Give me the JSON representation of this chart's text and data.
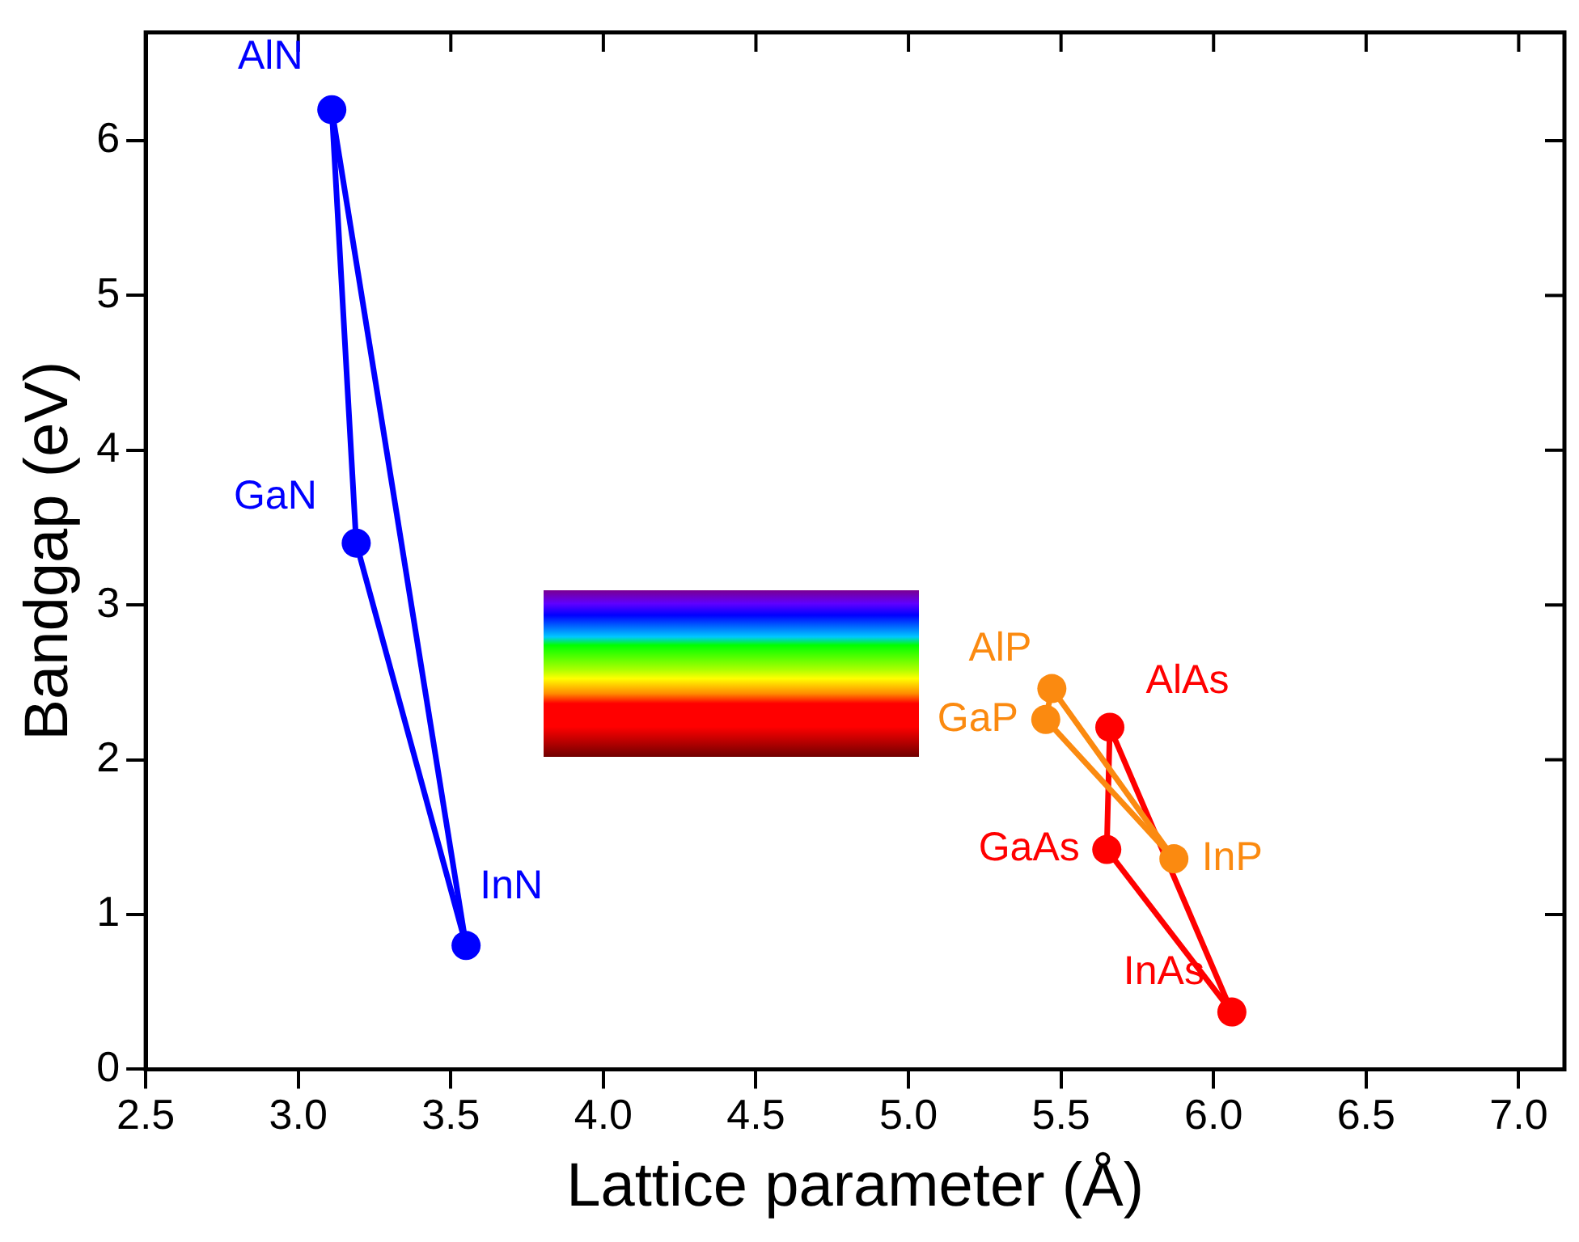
{
  "chart_data": {
    "type": "line",
    "xlabel": "Lattice parameter (Å)",
    "ylabel": "Bandgap (eV)",
    "xlim": [
      2.5,
      7.15
    ],
    "ylim": [
      0,
      6.7
    ],
    "xticks": [
      2.5,
      {
        "value": 3,
        "label": "3.0"
      },
      3.5,
      {
        "value": 4,
        "label": "4.0"
      },
      4.5,
      {
        "value": 5,
        "label": "5.0"
      },
      5.5,
      {
        "value": 6,
        "label": "6.0"
      },
      6.5,
      {
        "value": 7,
        "label": "7.0"
      }
    ],
    "yticks": [
      0,
      1,
      2,
      3,
      4,
      5,
      6
    ],
    "marker": "circle",
    "line_style": "solid",
    "grid": false,
    "legend": false,
    "series": [
      {
        "color": "#0000ff",
        "x": [
          3.11,
          3.19,
          3.55
        ],
        "values": [
          6.2,
          3.4,
          0.8
        ]
      },
      {
        "color": "#0000ff",
        "marker": "none",
        "x": [
          3.11,
          3.55
        ],
        "values": [
          6.2,
          0.8
        ]
      },
      {
        "color": "#fb8a10",
        "x": [
          5.45,
          5.47,
          5.87
        ],
        "values": [
          2.26,
          2.46,
          1.36
        ]
      },
      {
        "color": "#fb8a10",
        "marker": "none",
        "x": [
          5.45,
          5.87
        ],
        "values": [
          2.26,
          1.36
        ]
      },
      {
        "color": "#ff0000",
        "x": [
          5.65,
          5.66,
          6.06
        ],
        "values": [
          1.42,
          2.21,
          0.37
        ]
      },
      {
        "color": "#ff0000",
        "marker": "none",
        "x": [
          5.65,
          6.06
        ],
        "values": [
          1.42,
          0.37
        ]
      }
    ],
    "annotations": [
      {
        "text": "AlN",
        "x": 3.11,
        "y": 6.2
      },
      {
        "text": "GaN",
        "x": 3.19,
        "y": 3.4
      },
      {
        "text": "InN",
        "x": 3.55,
        "y": 0.8
      },
      {
        "text": "AlP",
        "x": 5.47,
        "y": 2.46
      },
      {
        "text": "GaP",
        "x": 5.45,
        "y": 2.26
      },
      {
        "text": "InP",
        "x": 5.87,
        "y": 1.36
      },
      {
        "text": "AlAs",
        "x": 5.66,
        "y": 2.21
      },
      {
        "text": "GaAs",
        "x": 5.65,
        "y": 1.42
      },
      {
        "text": "InAs",
        "x": 6.06,
        "y": 0.37
      }
    ]
  }
}
